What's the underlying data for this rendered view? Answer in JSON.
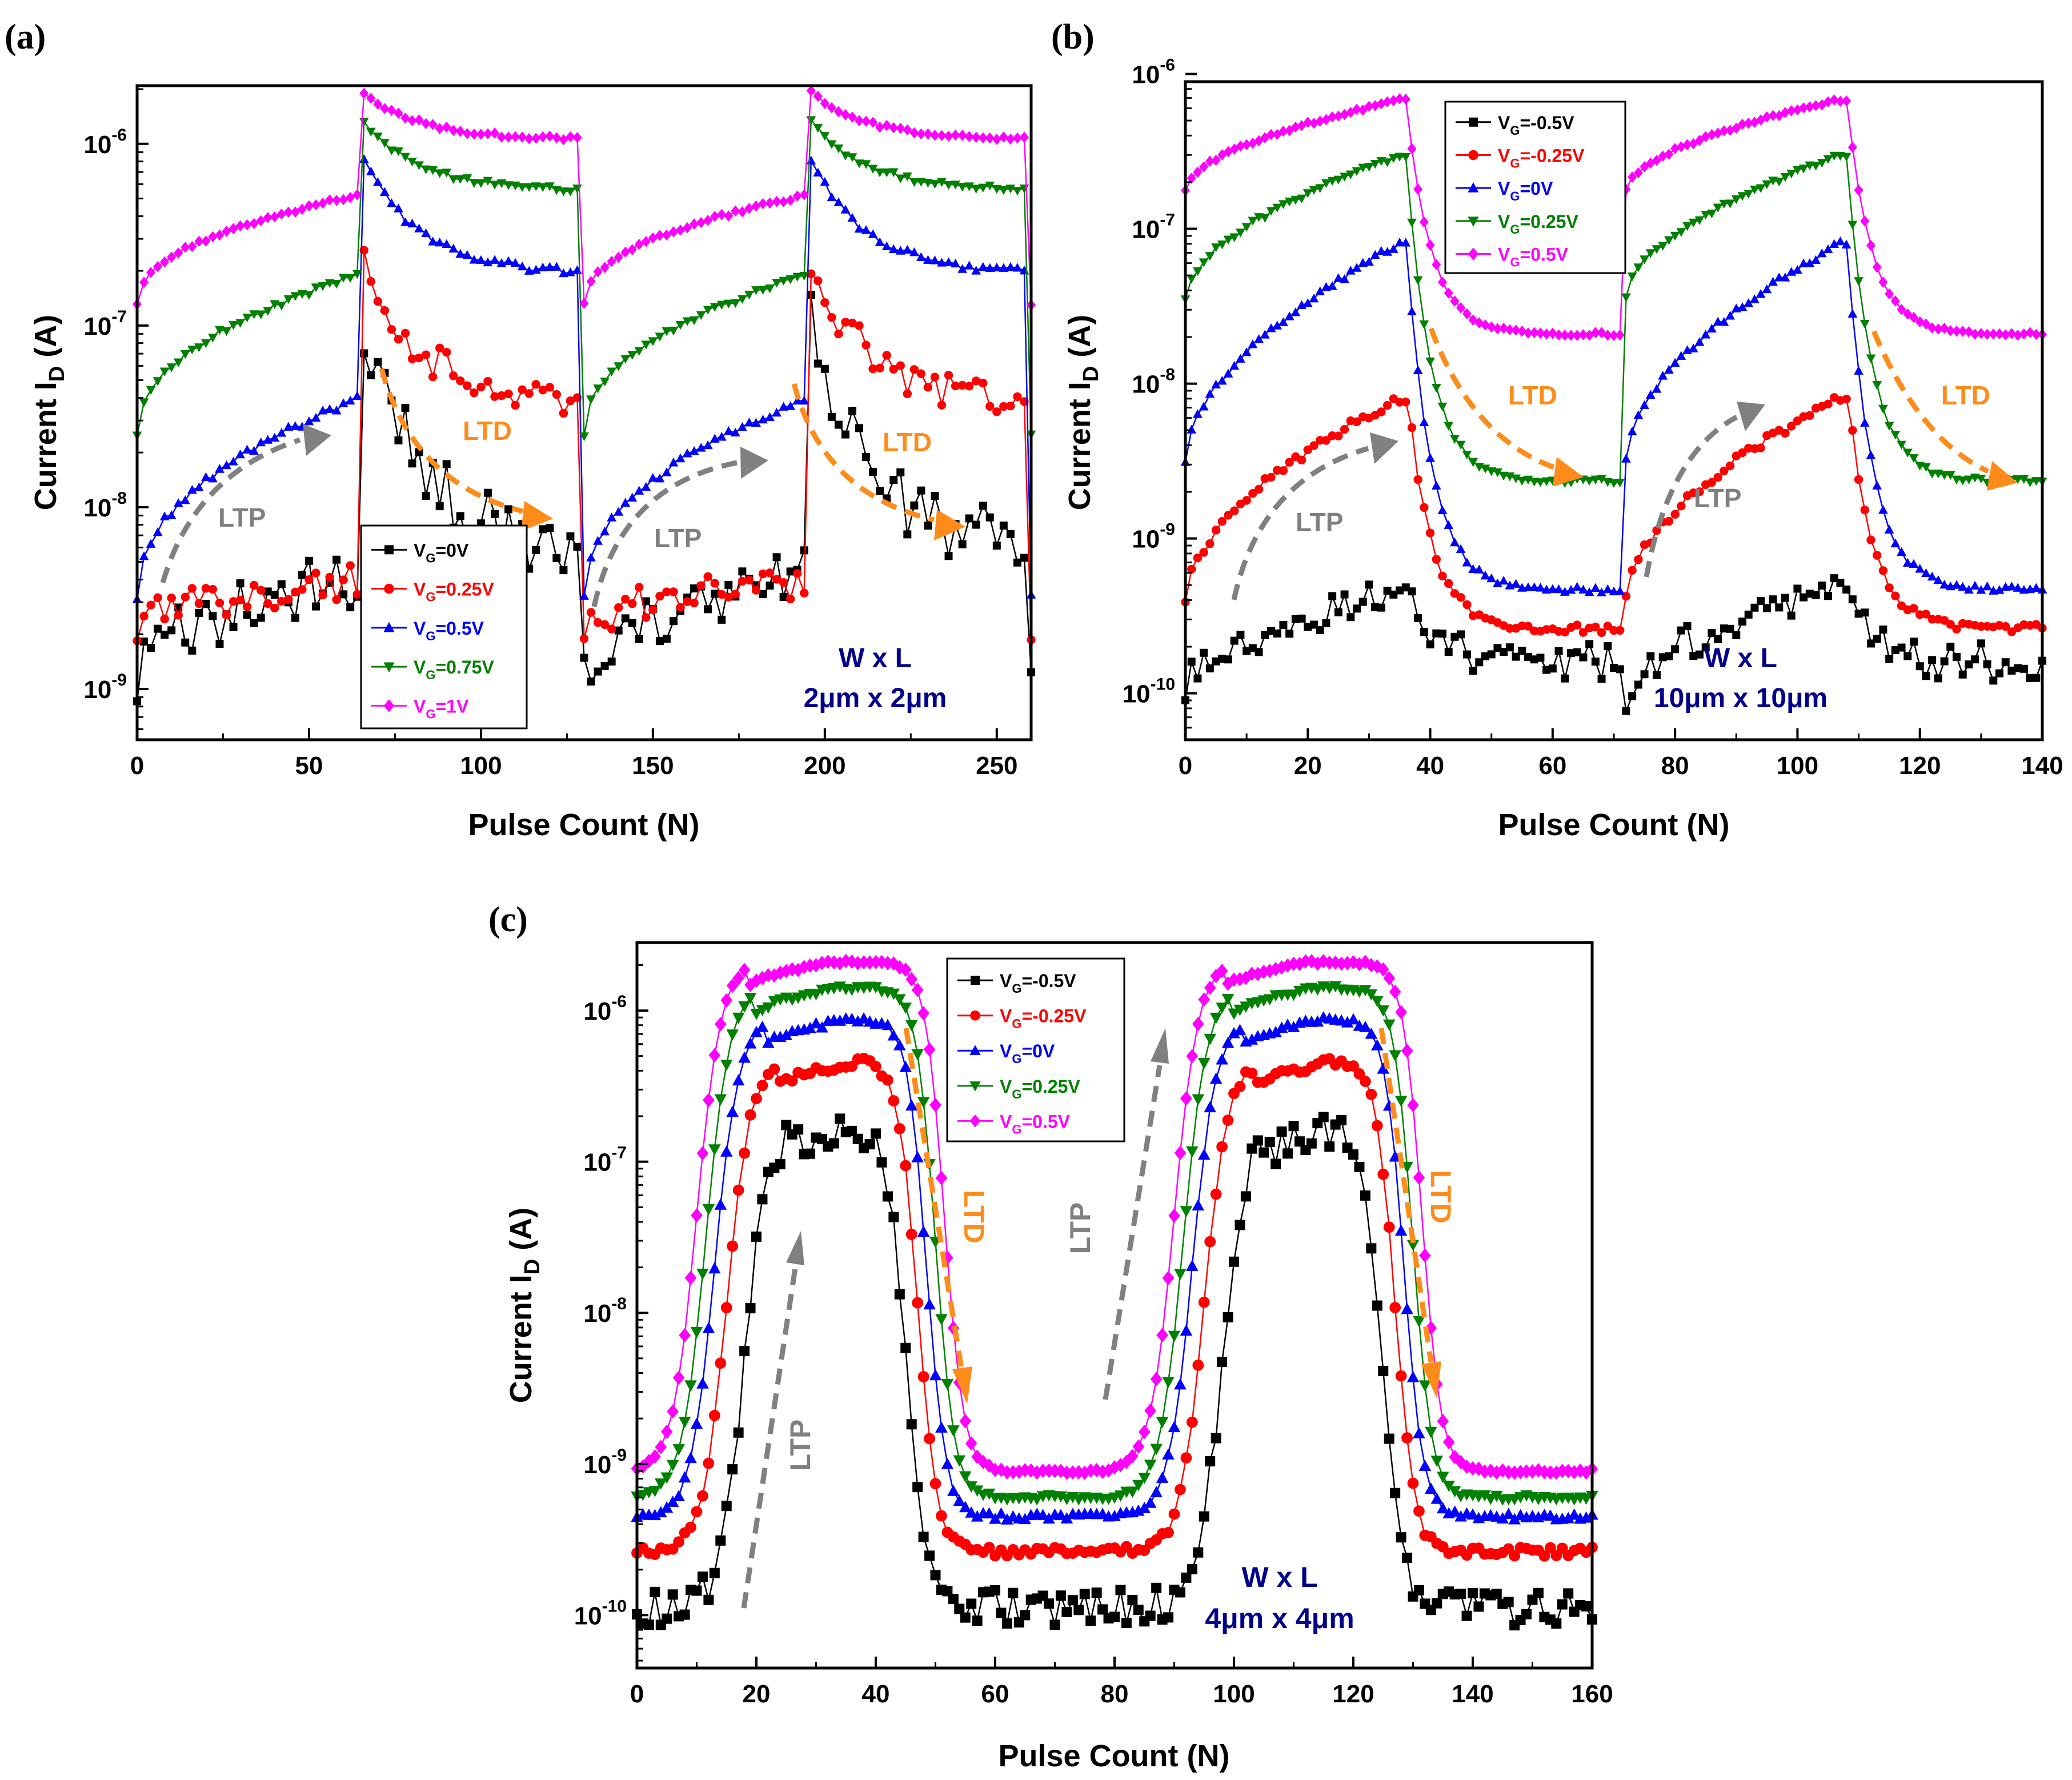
{
  "figure": {
    "panel_labels": [
      "(a)",
      "(b)",
      "(c)"
    ]
  },
  "colors": {
    "black": "#000000",
    "red": "#ff0000",
    "blue": "#0000ff",
    "green": "#008000",
    "magenta": "#ff00ff",
    "ltp_arrow": "#808080",
    "ltd_arrow": "#ff8c1a",
    "dim_text": "#00008b"
  },
  "chart_data": [
    {
      "id": "a",
      "type": "line",
      "y_scale": "log",
      "xlabel": "Pulse Count (N)",
      "ylabel_main": "Current I",
      "ylabel_sub": "D",
      "ylabel_tail": " (A)",
      "xlim": [
        0,
        260
      ],
      "ylim_exp": [
        -9.28,
        -5.68
      ],
      "xticks": [
        0,
        50,
        100,
        150,
        200,
        250
      ],
      "xtick_labels": [
        "0",
        "50",
        "100",
        "150",
        "200",
        "250"
      ],
      "yticks_exp": [
        -9,
        -8,
        -7,
        -6
      ],
      "ytick_labels": [
        {
          "base": "10",
          "exp": "-9"
        },
        {
          "base": "10",
          "exp": "-8"
        },
        {
          "base": "10",
          "exp": "-7"
        },
        {
          "base": "10",
          "exp": "-6"
        }
      ],
      "legend": [
        "V",
        "G",
        "=0V",
        "=0.25V",
        "=0.5V",
        "=0.75V",
        "=1V"
      ],
      "legend_position": "lower-middle",
      "period": 130,
      "half": 65,
      "series": [
        {
          "name": "VG=0V",
          "color": "black",
          "marker": "square",
          "start_exp": -9.0,
          "end_ltp_exp": -8.4,
          "peak_exp": -6.9,
          "end_ltd_exp": -8.2,
          "noise": 0.18
        },
        {
          "name": "VG=0.25V",
          "color": "red",
          "marker": "circle",
          "start_exp": -8.7,
          "end_ltp_exp": -8.4,
          "peak_exp": -6.6,
          "end_ltd_exp": -7.4,
          "noise": 0.1
        },
        {
          "name": "VG=0.5V",
          "color": "blue",
          "marker": "triangle-up",
          "start_exp": -8.5,
          "end_ltp_exp": -7.4,
          "peak_exp": -6.05,
          "end_ltd_exp": -6.7,
          "noise": 0.02
        },
        {
          "name": "VG=0.75V",
          "color": "green",
          "marker": "triangle-down",
          "start_exp": -7.6,
          "end_ltp_exp": -6.72,
          "peak_exp": -5.85,
          "end_ltd_exp": -6.25,
          "noise": 0.015
        },
        {
          "name": "VG=1V",
          "color": "magenta",
          "marker": "diamond",
          "start_exp": -6.88,
          "end_ltp_exp": -6.28,
          "peak_exp": -5.7,
          "end_ltd_exp": -5.97,
          "noise": 0.01
        }
      ],
      "annotations": {
        "ltp": "LTP",
        "ltd": "LTD",
        "dim_title": "W x L",
        "dim_value": "2μm x 2μm"
      }
    },
    {
      "id": "b",
      "type": "line",
      "y_scale": "log",
      "xlabel": "Pulse Count (N)",
      "ylabel_main": "Current I",
      "ylabel_sub": "D",
      "ylabel_tail": " (A)",
      "xlim": [
        0,
        140
      ],
      "ylim_exp": [
        -10.3,
        -6.05
      ],
      "xticks": [
        0,
        20,
        40,
        60,
        80,
        100,
        120,
        140
      ],
      "xtick_labels": [
        "0",
        "20",
        "40",
        "60",
        "80",
        "100",
        "120",
        "140"
      ],
      "yticks_exp": [
        -10,
        -9,
        -8,
        -7,
        -6
      ],
      "ytick_labels": [
        {
          "base": "10",
          "exp": "-10"
        },
        {
          "base": "10",
          "exp": "-9"
        },
        {
          "base": "10",
          "exp": "-8"
        },
        {
          "base": "10",
          "exp": "-7"
        },
        {
          "base": "10",
          "exp": "-6"
        }
      ],
      "legend": [
        "V",
        "G",
        "=-0.5V",
        "=-0.25V",
        "=0V",
        "=0.25V",
        "=0.5V"
      ],
      "legend_position": "top-left",
      "period": 72,
      "half": 36,
      "series": [
        {
          "name": "VG=-0.5V",
          "color": "black",
          "marker": "square",
          "start_exp": -10.0,
          "end_ltp_exp": -9.35,
          "peak_exp": -9.2,
          "end_ltd_exp": -9.8,
          "noise": 0.12
        },
        {
          "name": "VG=-0.25V",
          "color": "red",
          "marker": "circle",
          "start_exp": -9.4,
          "end_ltp_exp": -8.1,
          "peak_exp": -7.95,
          "end_ltd_exp": -9.58,
          "noise": 0.03
        },
        {
          "name": "VG=0V",
          "color": "blue",
          "marker": "triangle-up",
          "start_exp": -8.5,
          "end_ltp_exp": -7.1,
          "peak_exp": -7.02,
          "end_ltd_exp": -9.33,
          "noise": 0.02
        },
        {
          "name": "VG=0.25V",
          "color": "green",
          "marker": "triangle-down",
          "start_exp": -7.45,
          "end_ltp_exp": -6.53,
          "peak_exp": -6.5,
          "end_ltd_exp": -8.63,
          "noise": 0.015
        },
        {
          "name": "VG=0.5V",
          "color": "magenta",
          "marker": "diamond",
          "start_exp": -6.75,
          "end_ltp_exp": -6.17,
          "peak_exp": -6.14,
          "end_ltd_exp": -7.68,
          "noise": 0.01
        }
      ],
      "annotations": {
        "ltp": "LTP",
        "ltd": "LTD",
        "dim_title": "W x L",
        "dim_value": "10μm x 10μm"
      }
    },
    {
      "id": "c",
      "type": "line",
      "y_scale": "log",
      "xlabel": "Pulse Count (N)",
      "ylabel_main": "Current I",
      "ylabel_sub": "D",
      "ylabel_tail": " (A)",
      "xlim": [
        0,
        160
      ],
      "ylim_exp": [
        -10.35,
        -5.55
      ],
      "xticks": [
        0,
        20,
        40,
        60,
        80,
        100,
        120,
        140,
        160
      ],
      "xtick_labels": [
        "0",
        "20",
        "40",
        "60",
        "80",
        "100",
        "120",
        "140",
        "160"
      ],
      "yticks_exp": [
        -10,
        -9,
        -8,
        -7,
        -6
      ],
      "ytick_labels": [
        {
          "base": "10",
          "exp": "-10"
        },
        {
          "base": "10",
          "exp": "-9"
        },
        {
          "base": "10",
          "exp": "-8"
        },
        {
          "base": "10",
          "exp": "-7"
        },
        {
          "base": "10",
          "exp": "-6"
        }
      ],
      "legend": [
        "V",
        "G",
        "=-0.5V",
        "=-0.25V",
        "=0V",
        "=0.25V",
        "=0.5V"
      ],
      "legend_position": "top-middle",
      "period": 80,
      "half": 40,
      "series": [
        {
          "name": "VG=-0.5V",
          "color": "black",
          "marker": "square",
          "low_exp": -9.95,
          "high_exp": -6.75,
          "rise_center": 18,
          "fall_center": 45,
          "noise": 0.12
        },
        {
          "name": "VG=-0.25V",
          "color": "red",
          "marker": "circle",
          "low_exp": -9.58,
          "high_exp": -6.33,
          "rise_center": 15,
          "fall_center": 47,
          "noise": 0.03
        },
        {
          "name": "VG=0V",
          "color": "blue",
          "marker": "triangle-up",
          "low_exp": -9.35,
          "high_exp": -6.06,
          "rise_center": 13,
          "fall_center": 48.5,
          "noise": 0.02
        },
        {
          "name": "VG=0.25V",
          "color": "green",
          "marker": "triangle-down",
          "low_exp": -9.22,
          "high_exp": -5.85,
          "rise_center": 11.5,
          "fall_center": 50,
          "noise": 0.015
        },
        {
          "name": "VG=0.5V",
          "color": "magenta",
          "marker": "diamond",
          "low_exp": -9.05,
          "high_exp": -5.68,
          "rise_center": 10,
          "fall_center": 51.5,
          "noise": 0.01
        }
      ],
      "annotations": {
        "ltp": "LTP",
        "ltd": "LTD",
        "dim_title": "W x L",
        "dim_value": "4μm x 4μm"
      }
    }
  ]
}
